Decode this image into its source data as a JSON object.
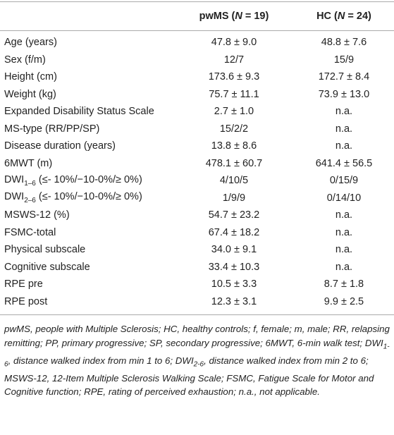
{
  "table": {
    "header": [
      {
        "pre": "pwMS (",
        "italic": "N",
        "post": " = 19)"
      },
      {
        "pre": "HC (",
        "italic": "N",
        "post": " = 24)"
      }
    ],
    "rows": [
      [
        {
          "text": "Age (years)"
        },
        "47.8 ± 9.0",
        "48.8 ± 7.6"
      ],
      [
        {
          "text": "Sex (f/m)"
        },
        "12/7",
        "15/9"
      ],
      [
        {
          "text": "Height (cm)"
        },
        "173.6 ± 9.3",
        "172.7 ± 8.4"
      ],
      [
        {
          "text": "Weight (kg)"
        },
        "75.7 ± 11.1",
        "73.9 ± 13.0"
      ],
      [
        {
          "text": "Expanded Disability Status Scale"
        },
        "2.7 ± 1.0",
        "n.a."
      ],
      [
        {
          "text": "MS-type (RR/PP/SP)"
        },
        "15/2/2",
        "n.a."
      ],
      [
        {
          "text": "Disease duration (years)"
        },
        "13.8 ± 8.6",
        "n.a."
      ],
      [
        {
          "text": "6MWT (m)"
        },
        "478.1 ± 60.7",
        "641.4 ± 56.5"
      ],
      [
        {
          "text": "DWI",
          "sub": "1–6",
          "rest": " (≤- 10%/−10-0%/≥ 0%)"
        },
        "4/10/5",
        "0/15/9"
      ],
      [
        {
          "text": "DWI",
          "sub": "2–6",
          "rest": " (≤- 10%/−10-0%/≥ 0%)"
        },
        "1/9/9",
        "0/14/10"
      ],
      [
        {
          "text": "MSWS-12 (%)"
        },
        "54.7 ± 23.2",
        "n.a."
      ],
      [
        {
          "text": "FSMC-total"
        },
        "67.4 ± 18.2",
        "n.a."
      ],
      [
        {
          "text": "Physical subscale"
        },
        "34.0 ± 9.1",
        "n.a."
      ],
      [
        {
          "text": "Cognitive subscale"
        },
        "33.4 ± 10.3",
        "n.a."
      ],
      [
        {
          "text": "RPE pre"
        },
        "10.5 ± 3.3",
        "8.7 ± 1.8"
      ],
      [
        {
          "text": "RPE post"
        },
        "12.3 ± 3.1",
        "9.9 ± 2.5"
      ]
    ]
  },
  "footnote": [
    {
      "text": "pwMS, people with Multiple Sclerosis; HC, healthy controls; f, female; m, male; RR, relapsing remitting; PP, primary progressive; SP, secondary progressive; 6MWT, 6-min walk test; DWI"
    },
    {
      "text": "1-6",
      "sub": true
    },
    {
      "text": ", distance walked index from min 1 to 6; DWI"
    },
    {
      "text": "2-6",
      "sub": true
    },
    {
      "text": ", distance walked index from min 2 to 6; MSWS-12, 12-Item Multiple Sclerosis Walking Scale; FSMC, Fatigue Scale for Motor and Cognitive function; RPE, rating of perceived exhaustion; n.a., not applicable."
    }
  ]
}
